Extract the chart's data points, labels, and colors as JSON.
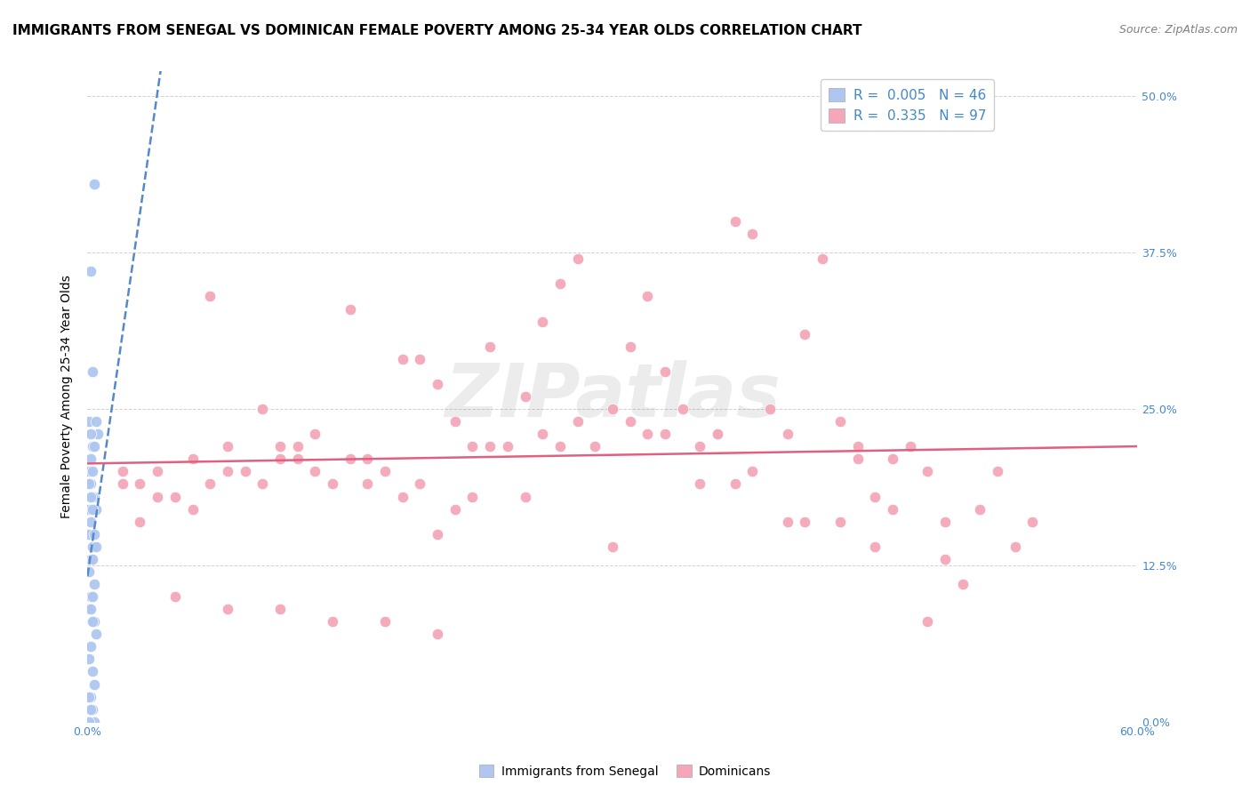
{
  "title": "IMMIGRANTS FROM SENEGAL VS DOMINICAN FEMALE POVERTY AMONG 25-34 YEAR OLDS CORRELATION CHART",
  "source": "Source: ZipAtlas.com",
  "ylabel": "Female Poverty Among 25-34 Year Olds",
  "ytick_labels": [
    "0.0%",
    "12.5%",
    "25.0%",
    "37.5%",
    "50.0%"
  ],
  "ytick_values": [
    0.0,
    0.125,
    0.25,
    0.375,
    0.5
  ],
  "xlim": [
    0.0,
    0.6
  ],
  "ylim": [
    0.0,
    0.52
  ],
  "senegal_x": [
    0.004,
    0.002,
    0.003,
    0.001,
    0.005,
    0.006,
    0.002,
    0.003,
    0.004,
    0.002,
    0.001,
    0.003,
    0.002,
    0.001,
    0.004,
    0.003,
    0.002,
    0.005,
    0.001,
    0.003,
    0.002,
    0.001,
    0.004,
    0.003,
    0.005,
    0.002,
    0.003,
    0.001,
    0.004,
    0.002,
    0.003,
    0.001,
    0.002,
    0.004,
    0.003,
    0.005,
    0.002,
    0.001,
    0.003,
    0.004,
    0.002,
    0.001,
    0.003,
    0.002,
    0.004,
    0.001
  ],
  "senegal_y": [
    0.43,
    0.36,
    0.28,
    0.24,
    0.24,
    0.23,
    0.23,
    0.22,
    0.22,
    0.21,
    0.2,
    0.2,
    0.19,
    0.19,
    0.18,
    0.18,
    0.18,
    0.17,
    0.17,
    0.17,
    0.16,
    0.15,
    0.15,
    0.14,
    0.14,
    0.13,
    0.13,
    0.12,
    0.11,
    0.1,
    0.1,
    0.09,
    0.09,
    0.08,
    0.08,
    0.07,
    0.06,
    0.05,
    0.04,
    0.03,
    0.02,
    0.02,
    0.01,
    0.01,
    0.0,
    0.0
  ],
  "dominican_x": [
    0.04,
    0.06,
    0.07,
    0.08,
    0.09,
    0.1,
    0.11,
    0.12,
    0.13,
    0.14,
    0.15,
    0.16,
    0.17,
    0.18,
    0.19,
    0.2,
    0.21,
    0.22,
    0.23,
    0.24,
    0.25,
    0.26,
    0.27,
    0.28,
    0.29,
    0.3,
    0.31,
    0.32,
    0.33,
    0.34,
    0.35,
    0.36,
    0.37,
    0.38,
    0.39,
    0.4,
    0.41,
    0.42,
    0.43,
    0.44,
    0.45,
    0.46,
    0.47,
    0.48,
    0.49,
    0.5,
    0.51,
    0.52,
    0.53,
    0.54,
    0.02,
    0.03,
    0.05,
    0.07,
    0.1,
    0.12,
    0.15,
    0.18,
    0.2,
    0.22,
    0.25,
    0.27,
    0.3,
    0.32,
    0.35,
    0.37,
    0.4,
    0.43,
    0.45,
    0.48,
    0.02,
    0.04,
    0.06,
    0.08,
    0.11,
    0.13,
    0.16,
    0.19,
    0.21,
    0.23,
    0.26,
    0.28,
    0.31,
    0.33,
    0.36,
    0.38,
    0.41,
    0.44,
    0.46,
    0.49,
    0.03,
    0.05,
    0.08,
    0.11,
    0.14,
    0.17,
    0.2
  ],
  "dominican_y": [
    0.2,
    0.21,
    0.34,
    0.2,
    0.2,
    0.19,
    0.22,
    0.22,
    0.2,
    0.19,
    0.33,
    0.21,
    0.2,
    0.29,
    0.29,
    0.27,
    0.24,
    0.22,
    0.22,
    0.22,
    0.26,
    0.23,
    0.35,
    0.37,
    0.22,
    0.25,
    0.3,
    0.34,
    0.28,
    0.25,
    0.22,
    0.23,
    0.4,
    0.39,
    0.25,
    0.23,
    0.31,
    0.37,
    0.24,
    0.21,
    0.18,
    0.17,
    0.22,
    0.2,
    0.13,
    0.11,
    0.17,
    0.2,
    0.14,
    0.16,
    0.2,
    0.19,
    0.18,
    0.19,
    0.25,
    0.21,
    0.21,
    0.18,
    0.15,
    0.18,
    0.18,
    0.22,
    0.14,
    0.23,
    0.19,
    0.19,
    0.16,
    0.16,
    0.14,
    0.08,
    0.19,
    0.18,
    0.17,
    0.22,
    0.21,
    0.23,
    0.19,
    0.19,
    0.17,
    0.3,
    0.32,
    0.24,
    0.24,
    0.23,
    0.23,
    0.2,
    0.16,
    0.22,
    0.21,
    0.16,
    0.16,
    0.1,
    0.09,
    0.09,
    0.08,
    0.08,
    0.07
  ],
  "senegal_color": "#aec6f0",
  "senegal_line_color": "#5588cc",
  "dominican_color": "#f4a7b9",
  "dominican_line_color": "#e06080",
  "marker_size": 80,
  "marker_edge_color": "white",
  "background_color": "#ffffff",
  "grid_color": "#cccccc",
  "title_fontsize": 11,
  "axis_label_fontsize": 10,
  "tick_fontsize": 9,
  "source_fontsize": 9,
  "legend_fontsize": 10,
  "watermark_text": "ZIPatlas",
  "watermark_alpha": 0.15,
  "watermark_fontsize": 60,
  "tick_color": "#4488cc"
}
